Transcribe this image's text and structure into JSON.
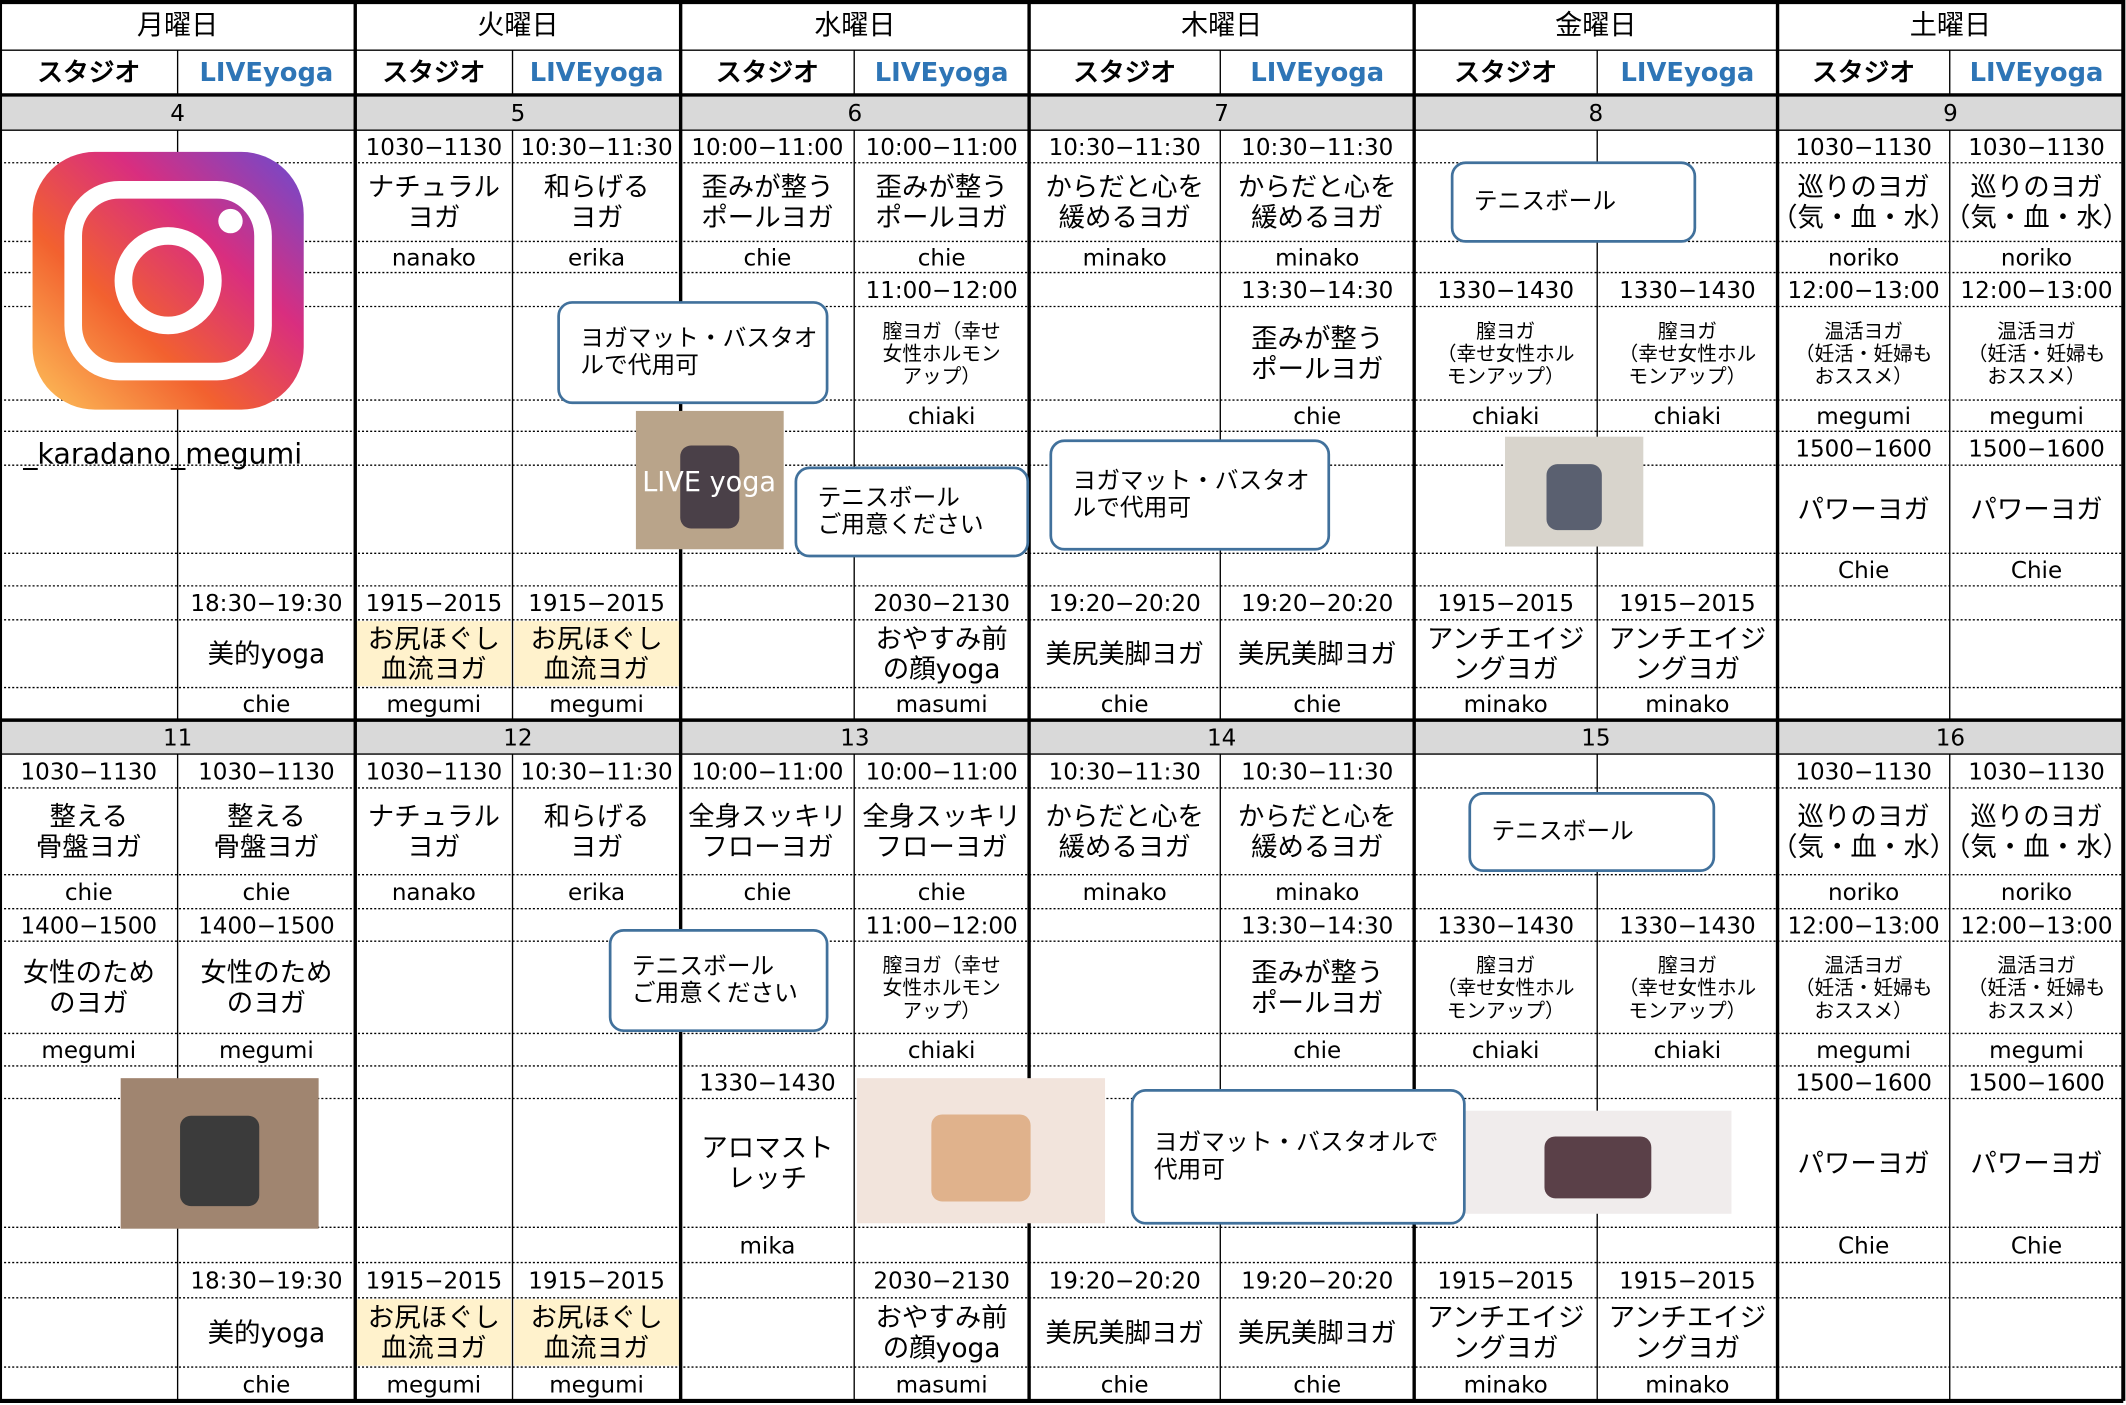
{
  "header": {
    "days": [
      "月曜日",
      "火曜日",
      "水曜日",
      "木曜日",
      "金曜日",
      "土曜日"
    ],
    "studio": "スタジオ",
    "live": "LIVEyoga",
    "live_color": "#2e75b6"
  },
  "weeks": [
    {
      "dates": [
        "4",
        "5",
        "6",
        "7",
        "8",
        "9"
      ],
      "rows": [
        [
          null,
          null,
          "1030−1130",
          "10:30−11:30",
          "10:00−11:00",
          "10:00−11:00",
          "10:30−11:30",
          "10:30−11:30",
          null,
          null,
          "1030−1130",
          "1030−1130"
        ],
        [
          null,
          null,
          "ナチュラル\nヨガ",
          "和らげる\nヨガ",
          "歪みが整う\nポールヨガ",
          "歪みが整う\nポールヨガ",
          "からだと心を\n緩めるヨガ",
          "からだと心を\n緩めるヨガ",
          null,
          null,
          "巡りのヨガ\n（気・血・水）",
          "巡りのヨガ\n（気・血・水）"
        ],
        [
          null,
          null,
          "nanako",
          "erika",
          "chie",
          "chie",
          "minako",
          "minako",
          null,
          null,
          "noriko",
          "noriko"
        ],
        [
          null,
          null,
          null,
          null,
          null,
          "11:00−12:00",
          null,
          "13:30−14:30",
          "1330−1430",
          "1330−1430",
          "12:00−13:00",
          "12:00−13:00"
        ],
        [
          null,
          null,
          null,
          null,
          null,
          "膣ヨガ（幸せ\n女性ホルモン\nアップ）",
          null,
          "歪みが整う\nポールヨガ",
          "膣ヨガ\n（幸せ女性ホル\nモンアップ）",
          "膣ヨガ\n（幸せ女性ホル\nモンアップ）",
          "温活ヨガ\n（妊活・妊婦も\nおススメ）",
          "温活ヨガ\n（妊活・妊婦も\nおススメ）"
        ],
        [
          null,
          null,
          null,
          null,
          null,
          "chiaki",
          null,
          "chie",
          "chiaki",
          "chiaki",
          "megumi",
          "megumi"
        ],
        [
          null,
          null,
          null,
          null,
          null,
          null,
          null,
          null,
          null,
          null,
          "1500−1600",
          "1500−1600"
        ],
        [
          null,
          null,
          null,
          null,
          null,
          null,
          null,
          null,
          null,
          null,
          "パワーヨガ",
          "パワーヨガ"
        ],
        [
          null,
          null,
          null,
          null,
          null,
          null,
          null,
          null,
          null,
          null,
          "Chie",
          "Chie"
        ],
        [
          null,
          "18:30−19:30",
          "1915−2015",
          "1915−2015",
          null,
          "2030−2130",
          "19:20−20:20",
          "19:20−20:20",
          "1915−2015",
          "1915−2015",
          null,
          null
        ],
        [
          null,
          "美的yoga",
          {
            "text": "お尻ほぐし\n血流ヨガ",
            "background": "#fff2cc"
          },
          {
            "text": "お尻ほぐし\n血流ヨガ",
            "background": "#fff2cc"
          },
          null,
          "おやすみ前\nの顔yoga",
          "美尻美脚ヨガ",
          "美尻美脚ヨガ",
          "アンチエイジ\nングヨガ",
          "アンチエイジ\nングヨガ",
          null,
          null
        ],
        [
          null,
          "chie",
          "megumi",
          "megumi",
          null,
          "masumi",
          "chie",
          "chie",
          "minako",
          "minako",
          null,
          null
        ]
      ],
      "callouts": [
        "ヨガマット・バスタオ\nルで代用可",
        "テニスボール\nご用意ください",
        "ヨガマット・バスタオ\nルで代用可",
        "テニスボール"
      ],
      "account": "_karadano_megumi",
      "photo_caption": "LIVE yoga"
    },
    {
      "dates": [
        "11",
        "12",
        "13",
        "14",
        "15",
        "16"
      ],
      "rows": [
        [
          "1030−1130",
          "1030−1130",
          "1030−1130",
          "10:30−11:30",
          "10:00−11:00",
          "10:00−11:00",
          "10:30−11:30",
          "10:30−11:30",
          null,
          null,
          "1030−1130",
          "1030−1130"
        ],
        [
          "整える\n骨盤ヨガ",
          "整える\n骨盤ヨガ",
          "ナチュラル\nヨガ",
          "和らげる\nヨガ",
          "全身スッキリ\nフローヨガ",
          "全身スッキリ\nフローヨガ",
          "からだと心を\n緩めるヨガ",
          "からだと心を\n緩めるヨガ",
          null,
          null,
          "巡りのヨガ\n（気・血・水）",
          "巡りのヨガ\n（気・血・水）"
        ],
        [
          "chie",
          "chie",
          "nanako",
          "erika",
          "chie",
          "chie",
          "minako",
          "minako",
          null,
          null,
          "noriko",
          "noriko"
        ],
        [
          "1400−1500",
          "1400−1500",
          null,
          null,
          null,
          "11:00−12:00",
          null,
          "13:30−14:30",
          "1330−1430",
          "1330−1430",
          "12:00−13:00",
          "12:00−13:00"
        ],
        [
          "女性のため\nのヨガ",
          "女性のため\nのヨガ",
          null,
          null,
          null,
          "膣ヨガ（幸せ\n女性ホルモン\nアップ）",
          null,
          "歪みが整う\nポールヨガ",
          "膣ヨガ\n（幸せ女性ホル\nモンアップ）",
          "膣ヨガ\n（幸せ女性ホル\nモンアップ）",
          "温活ヨガ\n（妊活・妊婦も\nおススメ）",
          "温活ヨガ\n（妊活・妊婦も\nおススメ）"
        ],
        [
          "megumi",
          "megumi",
          null,
          null,
          null,
          "chiaki",
          null,
          "chie",
          "chiaki",
          "chiaki",
          "megumi",
          "megumi"
        ],
        [
          null,
          null,
          null,
          null,
          "1330−1430",
          null,
          null,
          null,
          null,
          null,
          "1500−1600",
          "1500−1600"
        ],
        [
          null,
          null,
          null,
          null,
          "アロマスト\nレッチ",
          null,
          null,
          null,
          null,
          null,
          "パワーヨガ",
          "パワーヨガ"
        ],
        [
          null,
          null,
          null,
          null,
          "mika",
          null,
          null,
          null,
          null,
          null,
          "Chie",
          "Chie"
        ],
        [
          null,
          "18:30−19:30",
          "1915−2015",
          "1915−2015",
          null,
          "2030−2130",
          "19:20−20:20",
          "19:20−20:20",
          "1915−2015",
          "1915−2015",
          null,
          null
        ],
        [
          null,
          "美的yoga",
          {
            "text": "お尻ほぐし\n血流ヨガ",
            "background": "#fff2cc"
          },
          {
            "text": "お尻ほぐし\n血流ヨガ",
            "background": "#fff2cc"
          },
          null,
          "おやすみ前\nの顔yoga",
          "美尻美脚ヨガ",
          "美尻美脚ヨガ",
          "アンチエイジ\nングヨガ",
          "アンチエイジ\nングヨガ",
          null,
          null
        ],
        [
          null,
          "chie",
          "megumi",
          "megumi",
          null,
          "masumi",
          "chie",
          "chie",
          "minako",
          "minako",
          null,
          null
        ]
      ],
      "callouts": [
        "テニスボール",
        "テニスボール\nご用意ください",
        "ヨガマット・バスタオルで\n代用可"
      ]
    }
  ]
}
